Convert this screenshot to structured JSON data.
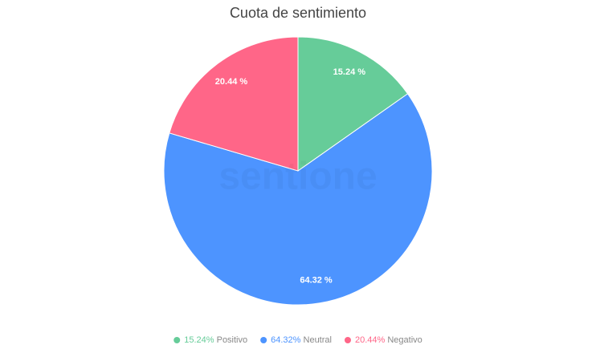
{
  "chart_data": {
    "type": "pie",
    "title": "Cuota de sentimiento",
    "watermark": "sentione",
    "categories": [
      "Positivo",
      "Neutral",
      "Negativo"
    ],
    "values": [
      15.24,
      64.32,
      20.44
    ],
    "value_labels": [
      "15.24 %",
      "64.32 %",
      "20.44 %"
    ],
    "legend_value_labels": [
      "15.24%",
      "64.32%",
      "20.44%"
    ],
    "colors": [
      "#66cc99",
      "#4d94ff",
      "#ff6688"
    ]
  }
}
